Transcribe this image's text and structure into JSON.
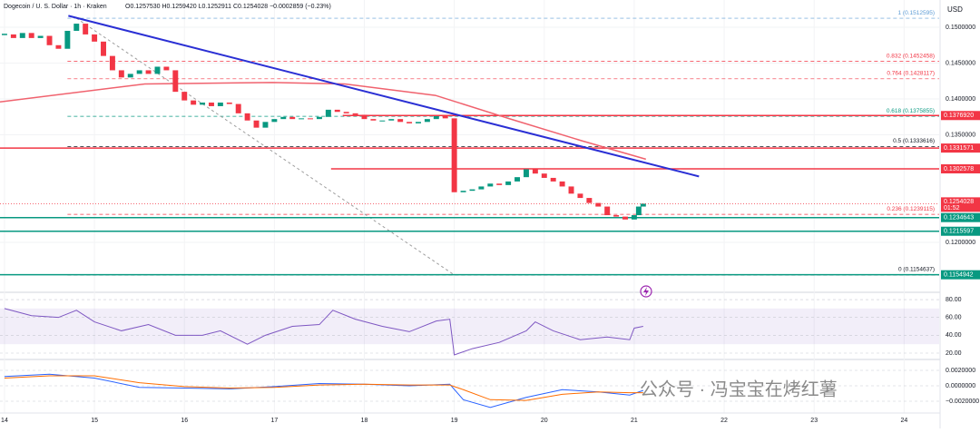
{
  "header": {
    "symbol": "Dogecoin / U. S. Dollar · 1h · Kraken",
    "ohlc": "O0.1257530 H0.1259420 L0.1252911 C0.1254028 −0.0002859 (−0.23%)"
  },
  "currency": "USD",
  "watermark": "公众号 · 冯宝宝在烤红薯",
  "chart_data": [
    {
      "type": "candlestick",
      "xlim": [
        13.95,
        24.39
      ],
      "ylim": [
        0.1133,
        0.1538
      ],
      "xticks": [
        14,
        15,
        16,
        17,
        18,
        19,
        20,
        21,
        22,
        23,
        24
      ],
      "yticks": [
        {
          "value": 0.15,
          "label": "0.1500000"
        },
        {
          "value": 0.145,
          "label": "0.1450000"
        },
        {
          "value": 0.14,
          "label": "0.1400000"
        },
        {
          "value": 0.135,
          "label": "0.1350000"
        },
        {
          "value": 0.12,
          "label": "0.1200000"
        }
      ],
      "up_color": "#089981",
      "down_color": "#f23645",
      "x": [
        14.0,
        14.1,
        14.2,
        14.3,
        14.4,
        14.5,
        14.6,
        14.7,
        14.8,
        14.9,
        15.0,
        15.1,
        15.2,
        15.3,
        15.4,
        15.5,
        15.6,
        15.7,
        15.8,
        15.9,
        16.0,
        16.1,
        16.2,
        16.3,
        16.4,
        16.5,
        16.6,
        16.7,
        16.8,
        16.9,
        17.0,
        17.1,
        17.2,
        17.3,
        17.4,
        17.5,
        17.6,
        17.7,
        17.8,
        17.9,
        18.0,
        18.1,
        18.2,
        18.3,
        18.4,
        18.5,
        18.6,
        18.7,
        18.8,
        18.9,
        19.0,
        19.1,
        19.2,
        19.3,
        19.4,
        19.5,
        19.6,
        19.7,
        19.8,
        19.9,
        20.0,
        20.1,
        20.2,
        20.3,
        20.4,
        20.5,
        20.6,
        20.7,
        20.8,
        20.9,
        21.0,
        21.05,
        21.1
      ],
      "close": [
        0.149,
        0.1485,
        0.1492,
        0.1485,
        0.1488,
        0.1475,
        0.147,
        0.1495,
        0.1505,
        0.149,
        0.148,
        0.146,
        0.144,
        0.143,
        0.1435,
        0.144,
        0.1435,
        0.1445,
        0.144,
        0.141,
        0.1398,
        0.1392,
        0.1395,
        0.139,
        0.1395,
        0.1393,
        0.138,
        0.137,
        0.136,
        0.1368,
        0.1372,
        0.1375,
        0.1372,
        0.1373,
        0.1372,
        0.1375,
        0.1385,
        0.1382,
        0.138,
        0.1378,
        0.1372,
        0.137,
        0.137,
        0.1372,
        0.1368,
        0.1366,
        0.1368,
        0.1372,
        0.1376,
        0.1373,
        0.127,
        0.1272,
        0.1274,
        0.1278,
        0.1282,
        0.128,
        0.1285,
        0.1291,
        0.1302,
        0.1296,
        0.129,
        0.1285,
        0.1278,
        0.1268,
        0.1262,
        0.1255,
        0.125,
        0.1238,
        0.1236,
        0.1232,
        0.1238,
        0.125,
        0.1254
      ],
      "moving_average": {
        "color": "#f0626e",
        "x": [
          13.95,
          15.56,
          16.98,
          17.78,
          18.79,
          19.6,
          20.41,
          21.13
        ],
        "values": [
          0.1396,
          0.1421,
          0.1423,
          0.1421,
          0.1405,
          0.1373,
          0.1342,
          0.1316
        ]
      },
      "trendline": {
        "color": "#2a2fd4",
        "x": [
          14.71,
          21.72
        ],
        "values": [
          0.1516,
          0.1292
        ]
      },
      "projection": {
        "color": "#9e9e9e",
        "x": [
          14.8,
          19.0
        ],
        "values": [
          0.1512595,
          0.1154637
        ]
      },
      "fib_start": 14.7,
      "fib_levels": [
        {
          "value": 0.1512595,
          "label": "1 (0.1512595)",
          "color": "#5b9bd5"
        },
        {
          "value": 0.1452458,
          "label": "0.832 (0.1452458)",
          "color": "#f23645"
        },
        {
          "value": 0.1428117,
          "label": "0.764 (0.1428117)",
          "color": "#f23645"
        },
        {
          "value": 0.1375855,
          "label": "0.618 (0.1375855)",
          "color": "#089981"
        },
        {
          "value": 0.1333616,
          "label": "0.5 (0.1333616)",
          "color": "#131722"
        },
        {
          "value": 0.1239115,
          "label": "0.236 (0.1239115)",
          "color": "#f23645"
        },
        {
          "value": 0.1154637,
          "label": "0 (0.1154637)",
          "color": "#131722"
        }
      ],
      "levels": [
        {
          "value": 0.137692,
          "label": "0.1376920",
          "color": "#f23645",
          "x_start": 17.76
        },
        {
          "value": 0.1331571,
          "label": "0.1331571",
          "color": "#f23645",
          "x_start": 13.95
        },
        {
          "value": 0.1302578,
          "label": "0.1302578",
          "color": "#f23645",
          "x_start": 17.63
        },
        {
          "value": 0.1234643,
          "label": "0.1234643",
          "color": "#089981",
          "x_start": 13.95
        },
        {
          "value": 0.1215597,
          "label": "0.1215597",
          "color": "#089981",
          "x_start": 13.95
        },
        {
          "value": 0.1154942,
          "label": "0.1154942",
          "color": "#089981",
          "x_start": 13.95
        }
      ],
      "current": {
        "value": 0.1254028,
        "label": "0.1254028",
        "countdown": "01:52",
        "color": "#f23645"
      }
    },
    {
      "type": "line",
      "xlim": [
        13.95,
        24.39
      ],
      "ylim": [
        13.9,
        85.1
      ],
      "band": [
        30,
        70
      ],
      "yticks": [
        {
          "value": 80,
          "label": "80.00"
        },
        {
          "value": 60,
          "label": "60.00"
        },
        {
          "value": 40,
          "label": "40.00"
        },
        {
          "value": 20,
          "label": "20.00"
        }
      ],
      "series": [
        {
          "color": "#7e57c2",
          "x": [
            14.0,
            14.3,
            14.6,
            14.8,
            15.0,
            15.3,
            15.6,
            15.9,
            16.2,
            16.4,
            16.7,
            16.9,
            17.2,
            17.5,
            17.65,
            17.9,
            18.2,
            18.5,
            18.8,
            18.95,
            19.0,
            19.2,
            19.5,
            19.8,
            19.9,
            20.1,
            20.4,
            20.7,
            20.95,
            21.0,
            21.1
          ],
          "values": [
            70,
            62,
            60,
            68,
            55,
            45,
            52,
            40,
            40,
            45,
            30,
            40,
            50,
            52,
            68,
            58,
            50,
            44,
            56,
            58,
            18,
            25,
            32,
            45,
            55,
            45,
            35,
            38,
            35,
            48,
            50
          ]
        }
      ]
    },
    {
      "type": "line",
      "xlim": [
        13.95,
        24.39
      ],
      "ylim": [
        -0.00353,
        0.00353
      ],
      "yticks": [
        {
          "value": 0.002,
          "label": "0.0020000"
        },
        {
          "value": 0,
          "label": "0.0000000"
        },
        {
          "value": -0.002,
          "label": "−0.0020000"
        }
      ],
      "series": [
        {
          "color": "#2962ff",
          "x": [
            14.0,
            14.5,
            15.0,
            15.5,
            16.0,
            16.5,
            17.0,
            17.5,
            18.0,
            18.5,
            18.95,
            19.1,
            19.4,
            19.8,
            20.2,
            20.6,
            20.95,
            21.1
          ],
          "values": [
            0.0012,
            0.0015,
            0.001,
            -0.0002,
            -0.0003,
            -0.0004,
            -0.0001,
            0.0003,
            0.0002,
            0.0,
            0.0002,
            -0.0018,
            -0.0028,
            -0.0015,
            -0.0005,
            -0.0008,
            -0.0012,
            -0.0006
          ]
        },
        {
          "color": "#ff6d00",
          "x": [
            14.0,
            14.5,
            15.0,
            15.5,
            16.0,
            16.5,
            17.0,
            17.5,
            18.0,
            18.5,
            18.95,
            19.1,
            19.4,
            19.8,
            20.2,
            20.6,
            20.95,
            21.1
          ],
          "values": [
            0.001,
            0.0013,
            0.0013,
            0.0004,
            -0.0001,
            -0.0003,
            -0.0002,
            0.0001,
            0.0002,
            0.0001,
            0.0001,
            -0.0005,
            -0.0018,
            -0.0019,
            -0.0011,
            -0.0008,
            -0.0009,
            -0.0009
          ]
        }
      ]
    }
  ]
}
